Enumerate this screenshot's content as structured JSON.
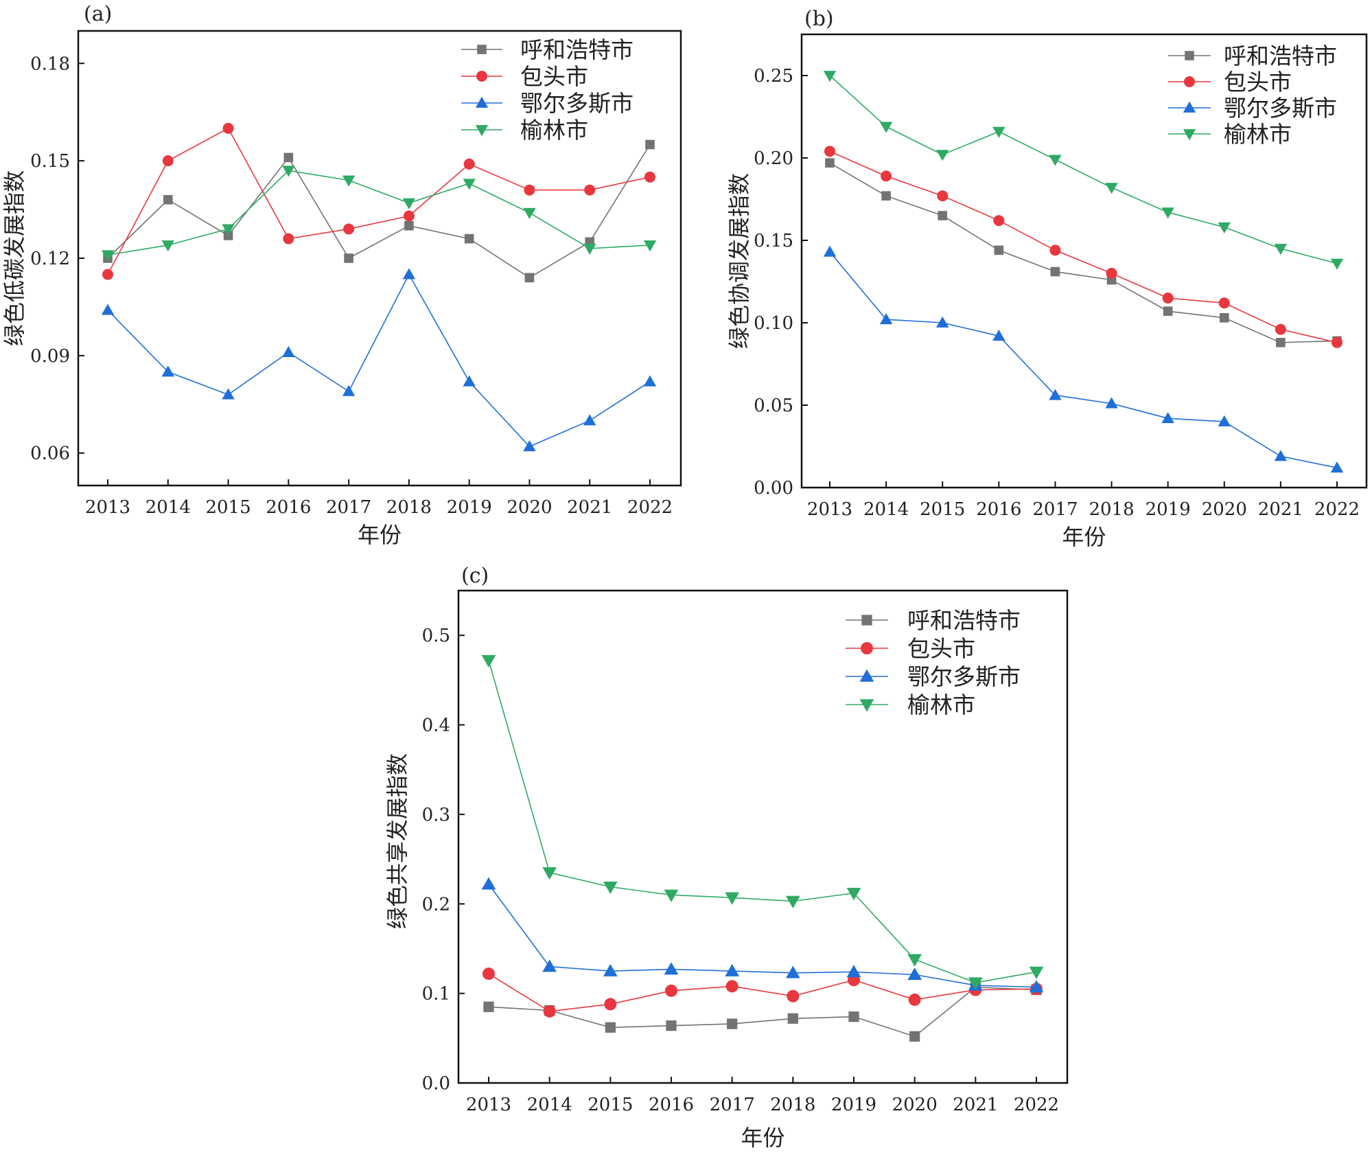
{
  "legend": [
    "呼和浩特市",
    "包头市",
    "鄂尔多斯市",
    "榆林市"
  ],
  "series_styles": [
    {
      "color": "#737373",
      "marker": "square"
    },
    {
      "color": "#e8373e",
      "marker": "circle"
    },
    {
      "color": "#1f6fd8",
      "marker": "triangle-up"
    },
    {
      "color": "#2eaa63",
      "marker": "triangle-down"
    }
  ],
  "chart_data": [
    {
      "type": "line",
      "panel": "(a)",
      "xlabel": "年份",
      "ylabel": "绿色低碳发展指数",
      "x": [
        "2013",
        "2014",
        "2015",
        "2016",
        "2017",
        "2018",
        "2019",
        "2020",
        "2021",
        "2022"
      ],
      "ylim": [
        0.05,
        0.19
      ],
      "yticks": [
        "0.06",
        "0.09",
        "0.12",
        "0.15",
        "0.18"
      ],
      "series": [
        {
          "name": "呼和浩特市",
          "values": [
            0.12,
            0.138,
            0.127,
            0.151,
            0.12,
            0.13,
            0.126,
            0.114,
            0.125,
            0.155
          ]
        },
        {
          "name": "包头市",
          "values": [
            0.115,
            0.15,
            0.16,
            0.126,
            0.129,
            0.133,
            0.149,
            0.141,
            0.141,
            0.145
          ]
        },
        {
          "name": "鄂尔多斯市",
          "values": [
            0.104,
            0.085,
            0.078,
            0.091,
            0.079,
            0.115,
            0.082,
            0.062,
            0.07,
            0.082
          ]
        },
        {
          "name": "榆林市",
          "values": [
            0.121,
            0.124,
            0.129,
            0.147,
            0.144,
            0.137,
            0.143,
            0.134,
            0.123,
            0.124
          ]
        }
      ]
    },
    {
      "type": "line",
      "panel": "(b)",
      "xlabel": "年份",
      "ylabel": "绿色协调发展指数",
      "x": [
        "2013",
        "2014",
        "2015",
        "2016",
        "2017",
        "2018",
        "2019",
        "2020",
        "2021",
        "2022"
      ],
      "ylim": [
        0.0,
        0.275
      ],
      "yticks": [
        "0.00",
        "0.05",
        "0.10",
        "0.15",
        "0.20",
        "0.25"
      ],
      "series": [
        {
          "name": "呼和浩特市",
          "values": [
            0.197,
            0.177,
            0.165,
            0.144,
            0.131,
            0.126,
            0.107,
            0.103,
            0.088,
            0.089
          ]
        },
        {
          "name": "包头市",
          "values": [
            0.204,
            0.189,
            0.177,
            0.162,
            0.144,
            0.13,
            0.115,
            0.112,
            0.096,
            0.088
          ]
        },
        {
          "name": "鄂尔多斯市",
          "values": [
            0.143,
            0.102,
            0.1,
            0.092,
            0.056,
            0.051,
            0.042,
            0.04,
            0.019,
            0.012
          ]
        },
        {
          "name": "榆林市",
          "values": [
            0.25,
            0.219,
            0.202,
            0.216,
            0.199,
            0.182,
            0.167,
            0.158,
            0.145,
            0.136
          ]
        }
      ]
    },
    {
      "type": "line",
      "panel": "(c)",
      "xlabel": "年份",
      "ylabel": "绿色共享发展指数",
      "x": [
        "2013",
        "2014",
        "2015",
        "2016",
        "2017",
        "2018",
        "2019",
        "2020",
        "2021",
        "2022"
      ],
      "ylim": [
        0.0,
        0.55
      ],
      "yticks": [
        "0.0",
        "0.1",
        "0.2",
        "0.3",
        "0.4",
        "0.5"
      ],
      "series": [
        {
          "name": "呼和浩特市",
          "values": [
            0.085,
            0.081,
            0.062,
            0.064,
            0.066,
            0.072,
            0.074,
            0.052,
            0.107,
            0.104
          ]
        },
        {
          "name": "包头市",
          "values": [
            0.122,
            0.08,
            0.088,
            0.103,
            0.108,
            0.097,
            0.115,
            0.093,
            0.104,
            0.105
          ]
        },
        {
          "name": "鄂尔多斯市",
          "values": [
            0.222,
            0.13,
            0.125,
            0.127,
            0.125,
            0.123,
            0.124,
            0.121,
            0.109,
            0.107
          ]
        },
        {
          "name": "榆林市",
          "values": [
            0.472,
            0.235,
            0.219,
            0.21,
            0.207,
            0.203,
            0.212,
            0.138,
            0.112,
            0.124
          ]
        }
      ]
    }
  ]
}
